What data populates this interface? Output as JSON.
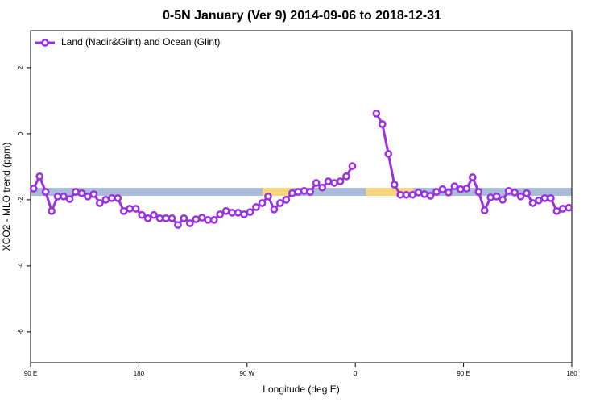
{
  "chart_data": {
    "type": "line",
    "title": "0-5N January (Ver 9)   2014-09-06 to 2018-12-31",
    "x_label": "Longitude (deg E)",
    "y_label": "XCO2 - MLO trend (ppm)",
    "x": [
      92.5,
      97.5,
      102.5,
      107.5,
      112.5,
      117.5,
      122.5,
      127.5,
      132.5,
      137.5,
      142.5,
      147.5,
      152.5,
      157.5,
      162.5,
      167.5,
      172.5,
      177.5,
      182.5,
      187.5,
      192.5,
      197.5,
      202.5,
      207.5,
      212.5,
      217.5,
      222.5,
      227.5,
      232.5,
      237.5,
      242.5,
      247.5,
      252.5,
      257.5,
      262.5,
      267.5,
      272.5,
      277.5,
      282.5,
      287.5,
      292.5,
      297.5,
      302.5,
      307.5,
      312.5,
      317.5,
      322.5,
      327.5,
      332.5,
      337.5,
      342.5,
      347.5,
      352.5,
      357.5,
      362.5,
      367.5,
      372.5,
      377.5,
      382.5,
      387.5,
      392.5,
      397.5,
      402.5,
      407.5,
      412.5,
      417.5,
      422.5,
      427.5,
      432.5,
      437.5,
      442.5,
      447.5,
      452.5,
      457.5,
      462.5,
      467.5,
      472.5,
      477.5,
      482.5,
      487.5,
      492.5,
      497.5,
      502.5,
      507.5,
      512.5,
      517.5,
      522.5,
      527.5,
      532.5,
      537.5
    ],
    "series": [
      {
        "name": "Land (Nadir&Glint) and Ocean (Glint)",
        "color": "#9b30e0",
        "values": [
          -1.66,
          -1.29,
          -1.76,
          -2.34,
          -1.9,
          -1.9,
          -1.98,
          -1.76,
          -1.8,
          -1.9,
          -1.83,
          -2.1,
          -2.0,
          -1.95,
          -1.95,
          -2.34,
          -2.27,
          -2.27,
          -2.46,
          -2.56,
          -2.46,
          -2.56,
          -2.56,
          -2.56,
          -2.76,
          -2.56,
          -2.71,
          -2.59,
          -2.54,
          -2.61,
          -2.61,
          -2.44,
          -2.34,
          -2.39,
          -2.39,
          -2.44,
          -2.37,
          -2.22,
          -2.1,
          -1.9,
          -2.29,
          -2.1,
          -2.0,
          -1.8,
          -1.76,
          -1.73,
          -1.76,
          -1.49,
          -1.63,
          -1.44,
          -1.49,
          -1.44,
          -1.29,
          -0.98,
          null,
          null,
          null,
          0.61,
          0.29,
          -0.61,
          -1.54,
          -1.85,
          -1.85,
          -1.85,
          -1.78,
          -1.83,
          -1.88,
          -1.76,
          -1.68,
          -1.78,
          -1.59,
          -1.68,
          -1.66,
          -1.32,
          -1.76,
          -2.32,
          -1.93,
          -1.9,
          -2.0,
          -1.73,
          -1.78,
          -1.9,
          -1.8,
          -2.1,
          -2.02,
          -1.95,
          -1.95,
          -2.34,
          -2.27,
          -2.24
        ]
      }
    ],
    "background_band": {
      "y": -1.76,
      "segments": [
        {
          "x": [
            90,
            283
          ],
          "color": "#a9bdd9"
        },
        {
          "x": [
            283,
            307
          ],
          "color": "#f7d57c"
        },
        {
          "x": [
            307,
            369
          ],
          "color": "#a9bdd9"
        },
        {
          "x": [
            369,
            408
          ],
          "color": "#f7d57c"
        },
        {
          "x": [
            408,
            540
          ],
          "color": "#a9bdd9"
        }
      ]
    },
    "xlim": [
      90,
      540
    ],
    "xticks": [
      {
        "value": 90,
        "label": "90 E"
      },
      180,
      {
        "value": 270,
        "label": "90 W"
      },
      {
        "value": 360,
        "label": "0"
      },
      {
        "value": 450,
        "label": "90 E"
      },
      180
    ],
    "ylim": [
      -6.93,
      3.12
    ],
    "yticks": [
      -6,
      -4,
      -2,
      0,
      2
    ],
    "legend": "top-left"
  }
}
